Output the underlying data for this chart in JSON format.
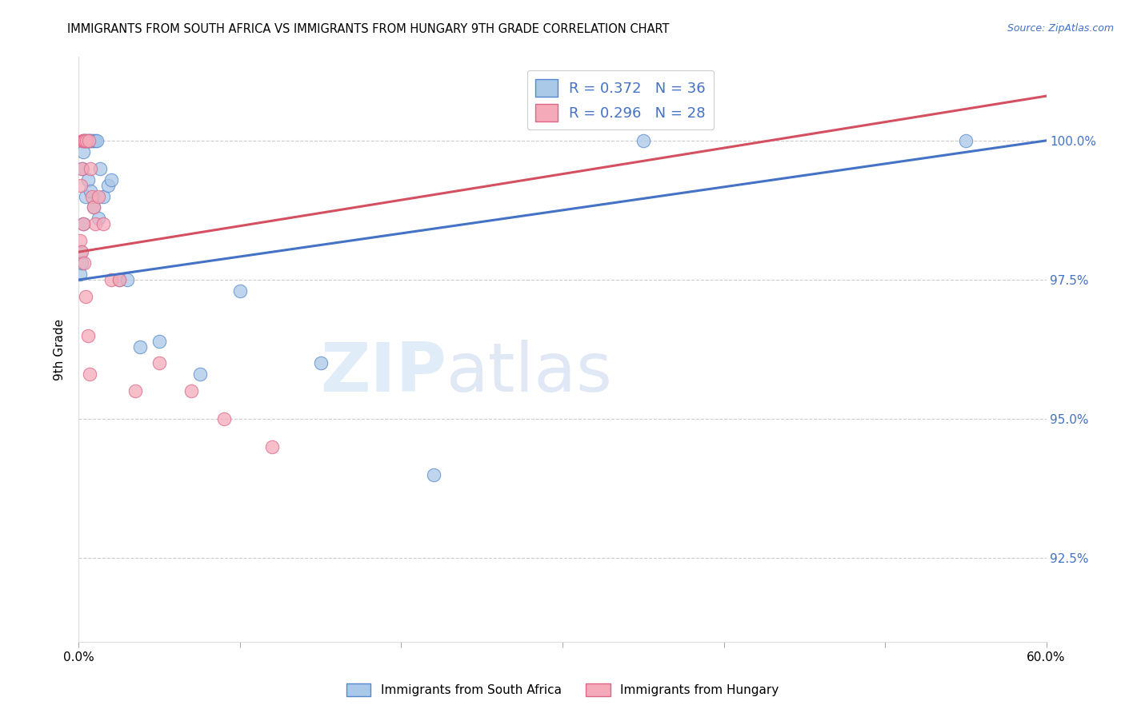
{
  "title": "IMMIGRANTS FROM SOUTH AFRICA VS IMMIGRANTS FROM HUNGARY 9TH GRADE CORRELATION CHART",
  "source": "Source: ZipAtlas.com",
  "ylabel": "9th Grade",
  "xlim": [
    0.0,
    60.0
  ],
  "ylim": [
    91.0,
    101.5
  ],
  "yticks": [
    92.5,
    95.0,
    97.5,
    100.0
  ],
  "ytick_labels": [
    "92.5%",
    "95.0%",
    "97.5%",
    "100.0%"
  ],
  "blue_fill": "#aac8e8",
  "pink_fill": "#f4aab8",
  "blue_edge": "#5588cc",
  "pink_edge": "#dd6688",
  "blue_line": "#4472c4",
  "pink_line": "#d45060",
  "legend_label_blue": "Immigrants from South Africa",
  "legend_label_pink": "Immigrants from Hungary",
  "watermark_zip": "ZIP",
  "watermark_atlas": "atlas",
  "blue_x": [
    0.1,
    0.15,
    0.2,
    0.25,
    0.3,
    0.35,
    0.4,
    0.5,
    0.55,
    0.6,
    0.65,
    0.7,
    0.8,
    0.9,
    1.0,
    1.1,
    1.3,
    1.5,
    1.8,
    2.0,
    2.5,
    3.0,
    3.8,
    5.0,
    7.5,
    10.0,
    15.0,
    22.0,
    35.0,
    55.0,
    0.3,
    0.45,
    0.55,
    0.7,
    0.9,
    1.2
  ],
  "blue_y": [
    97.6,
    98.0,
    97.8,
    99.5,
    99.8,
    100.0,
    100.0,
    100.0,
    100.0,
    100.0,
    100.0,
    100.0,
    100.0,
    100.0,
    100.0,
    100.0,
    99.5,
    99.0,
    99.2,
    99.3,
    97.5,
    97.5,
    96.3,
    96.4,
    95.8,
    97.3,
    96.0,
    94.0,
    100.0,
    100.0,
    98.5,
    99.0,
    99.3,
    99.1,
    98.8,
    98.6
  ],
  "pink_x": [
    0.1,
    0.15,
    0.2,
    0.25,
    0.3,
    0.35,
    0.4,
    0.5,
    0.6,
    0.7,
    0.8,
    0.9,
    1.0,
    1.2,
    1.5,
    2.0,
    2.5,
    3.5,
    5.0,
    7.0,
    9.0,
    12.0,
    0.2,
    0.3,
    0.35,
    0.45,
    0.55,
    0.65
  ],
  "pink_y": [
    98.2,
    99.2,
    99.5,
    100.0,
    100.0,
    100.0,
    100.0,
    100.0,
    100.0,
    99.5,
    99.0,
    98.8,
    98.5,
    99.0,
    98.5,
    97.5,
    97.5,
    95.5,
    96.0,
    95.5,
    95.0,
    94.5,
    98.0,
    98.5,
    97.8,
    97.2,
    96.5,
    95.8
  ]
}
